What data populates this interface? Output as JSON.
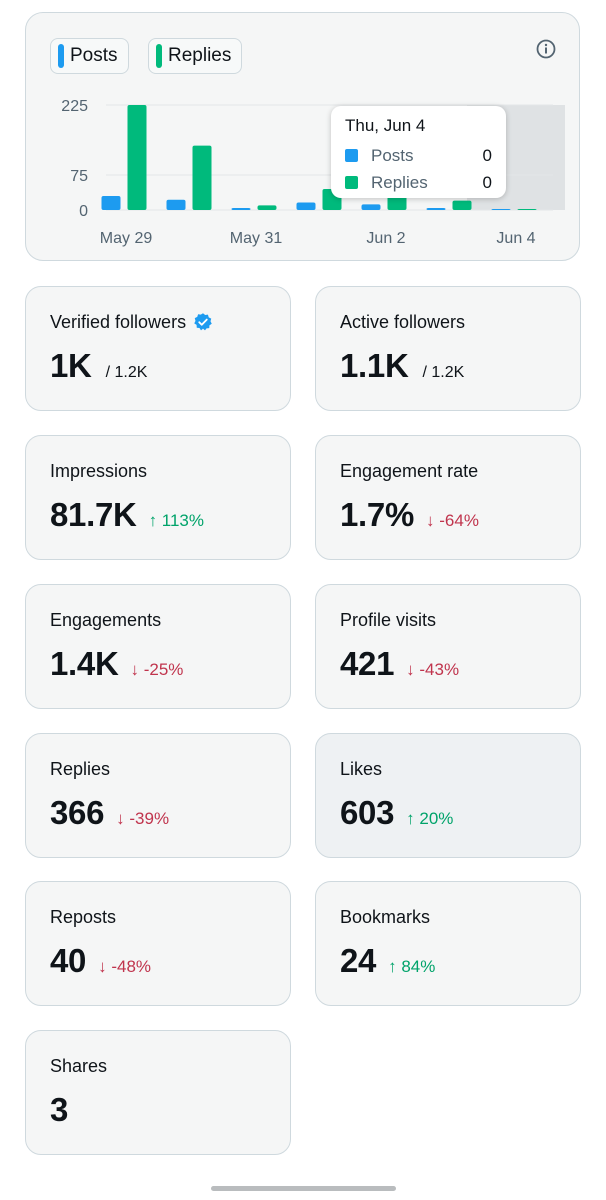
{
  "legend": [
    {
      "label": "Posts",
      "color": "#1d9bf0"
    },
    {
      "label": "Replies",
      "color": "#00ba7c"
    }
  ],
  "info_icon": "info-icon",
  "chart_data": {
    "type": "bar",
    "categories": [
      "May 29",
      "May 30",
      "May 31",
      "Jun 1",
      "Jun 2",
      "Jun 3",
      "Jun 4"
    ],
    "x_tick_labels": [
      "May 29",
      "May 31",
      "Jun 2",
      "Jun 4"
    ],
    "y_tick_labels": [
      "225",
      "75",
      "0"
    ],
    "y_ticks": [
      225,
      75,
      0
    ],
    "ylim": [
      0,
      225
    ],
    "series": [
      {
        "name": "Posts",
        "color": "#1d9bf0",
        "values": [
          30,
          22,
          2,
          16,
          12,
          2,
          0
        ]
      },
      {
        "name": "Replies",
        "color": "#00ba7c",
        "values": [
          225,
          138,
          10,
          45,
          48,
          20,
          0
        ]
      }
    ],
    "highlighted_category": "Jun 4",
    "legend_position": "top-left",
    "grid": true
  },
  "tooltip": {
    "title": "Thu, Jun 4",
    "rows": [
      {
        "label": "Posts",
        "value": "0",
        "color": "#1d9bf0"
      },
      {
        "label": "Replies",
        "value": "0",
        "color": "#00ba7c"
      }
    ]
  },
  "stats": {
    "verified_followers": {
      "label": "Verified followers",
      "value": "1K",
      "sub": "/ 1.2K"
    },
    "active_followers": {
      "label": "Active followers",
      "value": "1.1K",
      "sub": "/ 1.2K"
    },
    "impressions": {
      "label": "Impressions",
      "value": "81.7K",
      "change": "↑ 113%"
    },
    "engagement_rate": {
      "label": "Engagement rate",
      "value": "1.7%",
      "change": "↓ -64%"
    },
    "engagements": {
      "label": "Engagements",
      "value": "1.4K",
      "change": "↓ -25%"
    },
    "profile_visits": {
      "label": "Profile visits",
      "value": "421",
      "change": "↓ -43%"
    },
    "replies": {
      "label": "Replies",
      "value": "366",
      "change": "↓ -39%"
    },
    "likes": {
      "label": "Likes",
      "value": "603",
      "change": "↑ 20%"
    },
    "reposts": {
      "label": "Reposts",
      "value": "40",
      "change": "↓ -48%"
    },
    "bookmarks": {
      "label": "Bookmarks",
      "value": "24",
      "change": "↑ 84%"
    },
    "shares": {
      "label": "Shares",
      "value": "3"
    }
  },
  "colors": {
    "up": "#00a36a",
    "down": "#c0344d",
    "verified": "#1d9bf0"
  }
}
